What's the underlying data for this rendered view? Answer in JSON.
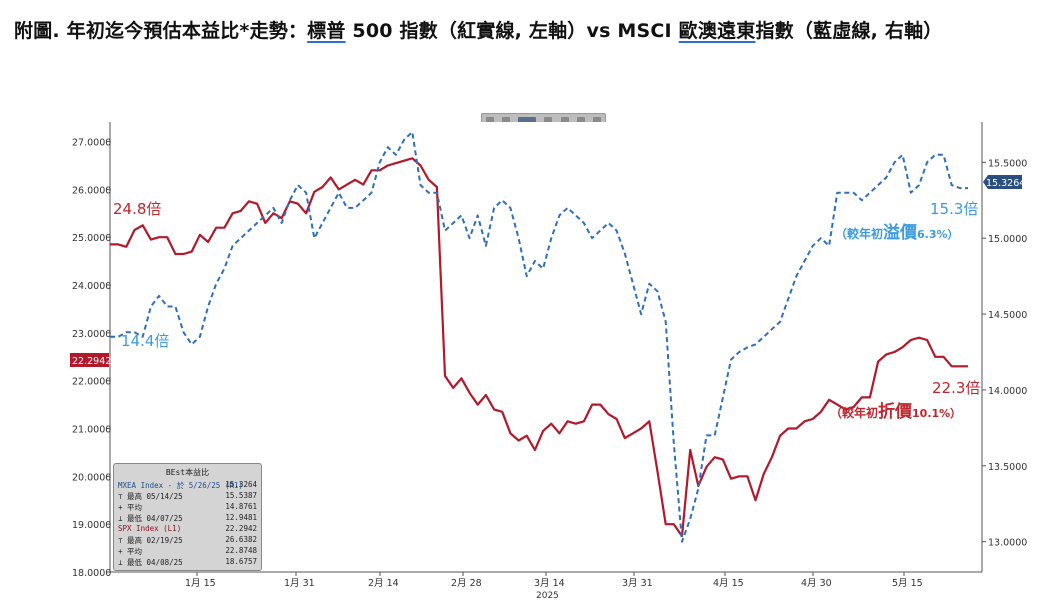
{
  "title": {
    "pre": "附圖. 年初迄今預估本益比*走勢：",
    "spx": "標普",
    "mid1": " 500 指數（紅實線, 左軸）vs MSCI ",
    "asia": "歐澳遠東",
    "post": "指數（藍虛線, 右軸）"
  },
  "chart_data": {
    "type": "line",
    "title": "",
    "x_ticks": [
      "1月 15",
      "1月 31",
      "2月 14",
      "2月 28",
      "3月 14",
      "3月 31",
      "4月 15",
      "4月 30",
      "5月 15"
    ],
    "x_year_label": "2025",
    "left_axis": {
      "ylim": [
        18.0,
        27.2
      ],
      "ticks": [
        "27.0000",
        "26.0000",
        "25.0000",
        "24.0000",
        "23.0000",
        "22.0000",
        "21.0000",
        "20.0000",
        "19.0000",
        "18.0000"
      ],
      "current_label": "22.2942"
    },
    "right_axis": {
      "ylim": [
        12.8,
        15.7
      ],
      "ticks": [
        "15.5000",
        "15.0000",
        "14.5000",
        "14.0000",
        "13.5000",
        "13.0000"
      ],
      "current_label": "15.3264"
    },
    "series": [
      {
        "name": "SPX Index",
        "axis": "left",
        "color": "#b3192a",
        "style": "solid",
        "values": [
          24.85,
          24.85,
          24.8,
          25.15,
          25.25,
          24.95,
          25.0,
          25.0,
          24.65,
          24.65,
          24.7,
          25.05,
          24.9,
          25.2,
          25.2,
          25.5,
          25.55,
          25.75,
          25.7,
          25.3,
          25.5,
          25.4,
          25.75,
          25.7,
          25.5,
          25.95,
          26.05,
          26.25,
          26.0,
          26.1,
          26.2,
          26.1,
          26.4,
          26.4,
          26.5,
          26.55,
          26.6,
          26.65,
          26.5,
          26.2,
          26.05,
          22.1,
          21.85,
          22.05,
          21.75,
          21.5,
          21.7,
          21.4,
          21.35,
          20.9,
          20.75,
          20.85,
          20.55,
          20.95,
          21.1,
          20.9,
          21.15,
          21.1,
          21.15,
          21.5,
          21.5,
          21.3,
          21.2,
          20.8,
          20.9,
          21.0,
          21.15,
          20.1,
          19.0,
          19.0,
          18.75,
          20.55,
          19.8,
          20.2,
          20.4,
          20.35,
          19.95,
          20.0,
          20.0,
          19.5,
          20.05,
          20.4,
          20.85,
          21.0,
          21.0,
          21.15,
          21.2,
          21.35,
          21.6,
          21.5,
          21.4,
          21.45,
          21.65,
          21.65,
          22.4,
          22.55,
          22.6,
          22.7,
          22.85,
          22.9,
          22.85,
          22.5,
          22.5,
          22.3,
          22.3,
          22.3
        ]
      },
      {
        "name": "MXEA Index",
        "axis": "right",
        "color": "#2e6fbd",
        "style": "dashed",
        "values": [
          14.35,
          14.35,
          14.38,
          14.38,
          14.35,
          14.55,
          14.62,
          14.55,
          14.55,
          14.38,
          14.3,
          14.35,
          14.55,
          14.7,
          14.8,
          14.95,
          15.0,
          15.05,
          15.1,
          15.15,
          15.2,
          15.1,
          15.25,
          15.35,
          15.3,
          15.0,
          15.1,
          15.2,
          15.3,
          15.2,
          15.2,
          15.25,
          15.3,
          15.5,
          15.6,
          15.55,
          15.65,
          15.7,
          15.35,
          15.3,
          15.3,
          15.05,
          15.1,
          15.15,
          15.0,
          15.15,
          14.95,
          15.2,
          15.25,
          15.2,
          15.0,
          14.75,
          14.85,
          14.8,
          15.0,
          15.15,
          15.2,
          15.15,
          15.1,
          15.0,
          15.05,
          15.1,
          15.05,
          14.9,
          14.7,
          14.5,
          14.7,
          14.65,
          14.45,
          13.65,
          13.0,
          13.15,
          13.35,
          13.7,
          13.7,
          13.95,
          14.2,
          14.25,
          14.28,
          14.3,
          14.35,
          14.4,
          14.45,
          14.6,
          14.75,
          14.85,
          14.95,
          15.0,
          14.95,
          15.3,
          15.3,
          15.3,
          15.25,
          15.3,
          15.35,
          15.4,
          15.5,
          15.55,
          15.3,
          15.35,
          15.5,
          15.55,
          15.55,
          15.35,
          15.33,
          15.33
        ]
      }
    ],
    "annotations": [
      {
        "text": "24.8倍",
        "color": "#c0262d"
      },
      {
        "text": "14.4倍",
        "color": "#3b9be0"
      },
      {
        "text": "15.3倍",
        "color": "#3b9be0"
      },
      {
        "text": "22.3倍",
        "color": "#c0262d"
      }
    ],
    "grid": false,
    "legend": "bottom-left"
  },
  "annotations_detail": {
    "blue_note": {
      "pre": "（較年初",
      "big": "溢價",
      "post": "6.3%）"
    },
    "red_note": {
      "pre": "（較年初",
      "big": "折價",
      "post": "10.1%）"
    }
  },
  "legend": {
    "header": "BEst本益比",
    "rows": [
      {
        "k": "MXEA Index - 於 5/26/25 (R1)",
        "v": "15.3264"
      },
      {
        "k": "⊤ 最高 05/14/25",
        "v": "15.5387"
      },
      {
        "k": "+ 平均",
        "v": "14.8761"
      },
      {
        "k": "⊥ 最低 04/07/25",
        "v": "12.9481"
      },
      {
        "k": "SPX Index  (L1)",
        "v": "22.2942"
      },
      {
        "k": "⊤ 最高 02/19/25",
        "v": "26.6382"
      },
      {
        "k": "+ 平均",
        "v": "22.8748"
      },
      {
        "k": "⊥ 最低 04/08/25",
        "v": "18.6757"
      }
    ]
  }
}
